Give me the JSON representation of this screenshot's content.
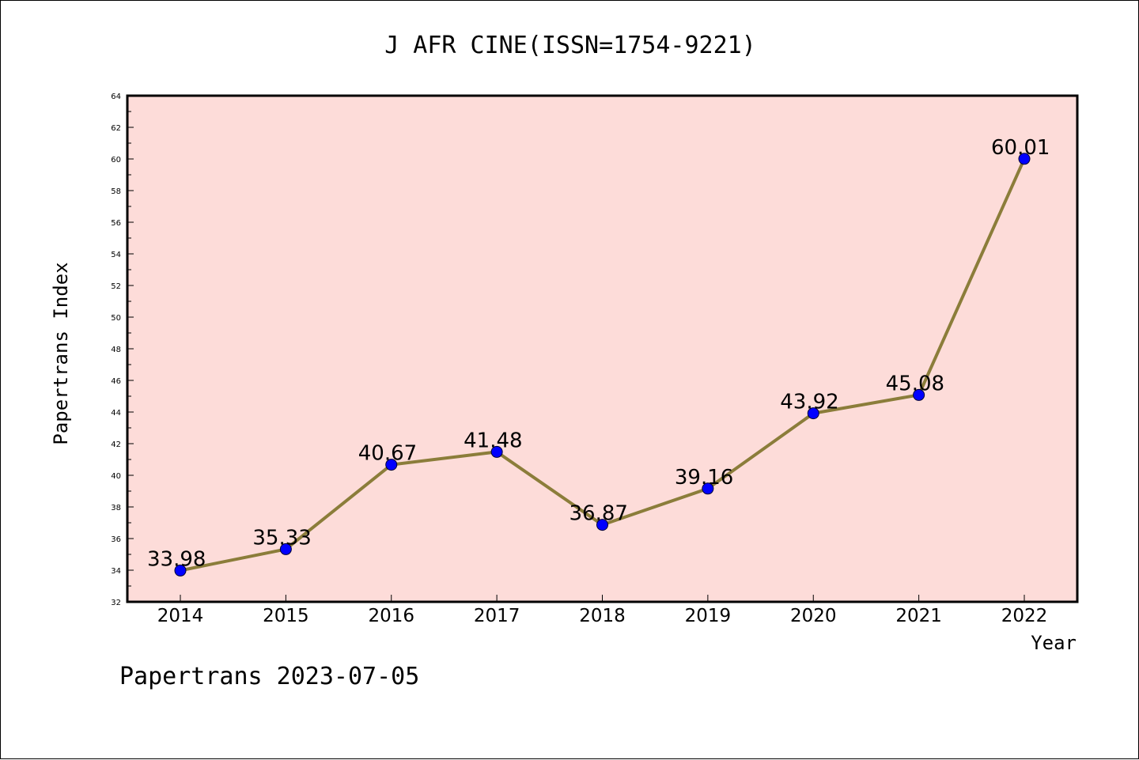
{
  "chart_data": {
    "type": "line",
    "title": "J AFR CINE(ISSN=1754-9221)",
    "xlabel": "Year",
    "ylabel": "Papertrans Index",
    "categories": [
      "2014",
      "2015",
      "2016",
      "2017",
      "2018",
      "2019",
      "2020",
      "2021",
      "2022"
    ],
    "series": [
      {
        "values": [
          33.98,
          35.33,
          40.67,
          41.48,
          36.87,
          39.16,
          43.92,
          45.08,
          60.01
        ],
        "labels": [
          "33.98",
          "35.33",
          "40.67",
          "41.48",
          "36.87",
          "39.16",
          "43.92",
          "45.08",
          "60.01"
        ],
        "line_color": "#8b7d3a",
        "marker_color": "#0000ff"
      }
    ],
    "ylim": [
      32,
      64
    ],
    "y_major_step": 2,
    "y_ticks": [
      "32",
      "34",
      "36",
      "38",
      "40",
      "42",
      "44",
      "46",
      "48",
      "50",
      "52",
      "54",
      "56",
      "58",
      "60",
      "62",
      "64"
    ],
    "grid": false,
    "legend": "none",
    "plot_background": "#fddcd9"
  },
  "footer": {
    "text": "Papertrans 2023-07-05"
  }
}
